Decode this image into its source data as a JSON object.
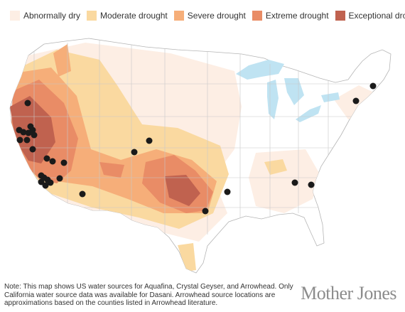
{
  "legend": [
    {
      "label": "Abnormally dry",
      "color": "#fdeee4"
    },
    {
      "label": "Moderate drought",
      "color": "#fad9a0"
    },
    {
      "label": "Severe drought",
      "color": "#f6ae79"
    },
    {
      "label": "Extreme drought",
      "color": "#e98c66"
    },
    {
      "label": "Exceptional drought",
      "color": "#c0624f"
    }
  ],
  "map": {
    "land_color": "#ffffff",
    "border_color": "#b5b5b5",
    "water_color": "#bfe3f2",
    "marker_color": "#1a1a1a",
    "marker_meaning": "water source location"
  },
  "note": "Note: This map shows US water sources for Aquafina, Crystal Geyser, and Arrowhead. Only California water source data was available for Dasani. Arrowhead source locations are approximations based on the counties listed in Arrowhead literature.",
  "brand": "Mother Jones"
}
